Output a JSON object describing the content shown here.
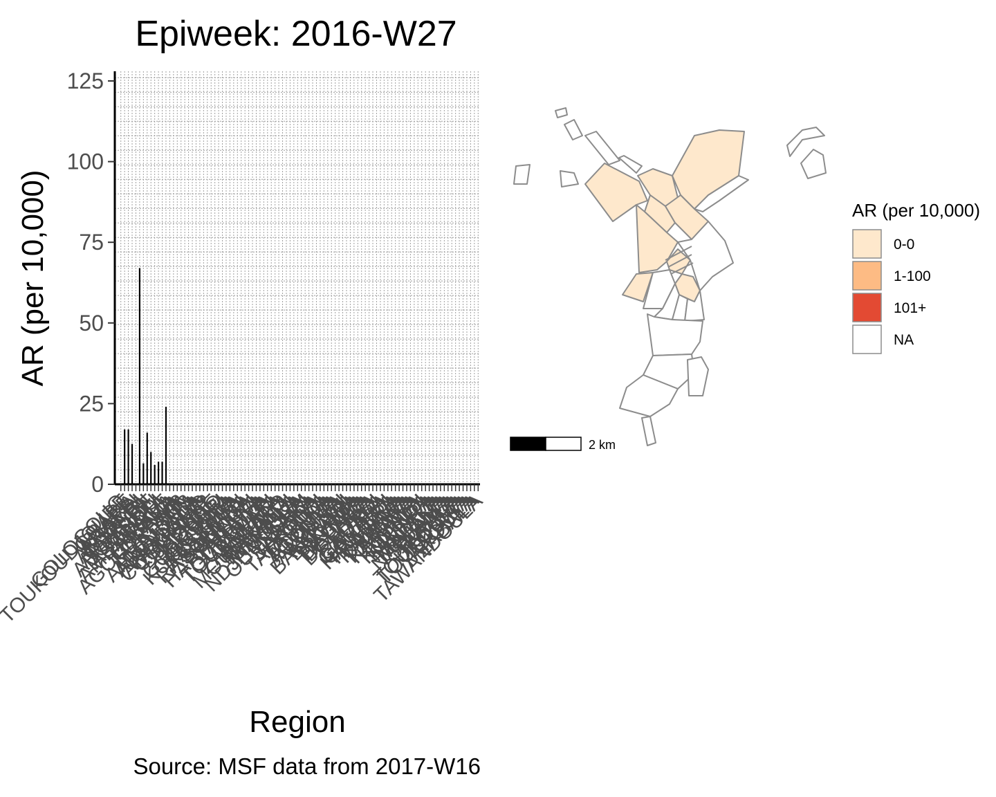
{
  "chart_data": {
    "type": "bar",
    "title": "Epiweek: 2016-W27",
    "xlabel": "Region",
    "ylabel": "AR (per 10,000)",
    "caption": "Source: MSF data from 2017-W16",
    "ylim": [
      0,
      125
    ],
    "yticks": [
      0,
      25,
      50,
      75,
      100,
      125
    ],
    "grid": true,
    "categories": [
      "GOLOGOUO",
      "TOUKOUDJOUBE",
      "GRAPE",
      "AMARA",
      "ARAEBI",
      "ASSAYRI",
      "TAWALA",
      "AMARAKI",
      "ABOUSIRE",
      "TAROU",
      "ASOUDDI",
      "AMBARAKA",
      "AMALE",
      "BABALA",
      "AGOUDJAMA",
      "FORAWA",
      "AIR",
      "AMATANA",
      "AMBATOUB",
      "ABOUDEIA",
      "BADALA",
      "AMDOUGA",
      "CORDIAMO",
      "COUDJAR",
      "DJAMBAL",
      "DJOUBE",
      "GOURO",
      "GOLKOURI",
      "GODINA",
      "KOUKOUNA",
      "KOURBIA",
      "RASSAGA",
      "RASSAMAN",
      "SOUMBA",
      "SOUNGA",
      "HARAGOULI",
      "TAMARA",
      "TARAWA",
      "TOUBOULA",
      "TOUBOUDA",
      "ZAMAKI",
      "ZAKOUMA",
      "ALWALA",
      "MOUSSORO",
      "MAKAMA",
      "MAKADJI",
      "NAWALA",
      "NDJAMOULA",
      "OURA",
      "OUMTOUM",
      "SARA",
      "SARAKA",
      "TAKORA",
      "TALKOUDI",
      "TARAKA",
      "TOUNDA",
      "ADOULA",
      "AGOUMA",
      "ALOUMA",
      "AMASSI",
      "BAKOUDJI",
      "BALAMA",
      "BINAWA",
      "BORDA",
      "DAGALA",
      "DALAMA",
      "DOUNGA",
      "FALAKA",
      "FORDI",
      "GADALA",
      "GAMARA",
      "GARADJI",
      "HADJERA",
      "HAMARA",
      "KABALA",
      "KADAMA",
      "KALWA",
      "KAMARA",
      "KARAWA",
      "KOBALA",
      "KOUDJI",
      "KOUNDA",
      "LAMARA",
      "MADALA",
      "MALAKA",
      "MARDJA",
      "NADJAMA",
      "SALAMA",
      "TAKALA",
      "TARALA",
      "TOUKOURA",
      "TOULOUMA",
      "TOURBA",
      "YAKOULA",
      "ZABALA",
      "TAWANDOULA"
    ],
    "values": [
      0,
      17,
      17,
      12.5,
      0,
      67,
      6.5,
      16,
      10,
      6,
      7,
      7,
      24,
      0,
      0,
      0,
      0,
      0,
      0,
      0,
      0,
      0,
      0,
      0,
      0,
      0,
      0,
      0,
      0,
      0,
      0,
      0,
      0,
      0,
      0,
      0,
      0,
      0,
      0,
      0,
      0,
      0,
      0,
      0,
      0,
      0,
      0,
      0,
      0,
      0,
      0,
      0,
      0,
      0,
      0,
      0,
      0,
      0,
      0,
      0,
      0,
      0,
      0,
      0,
      0,
      0,
      0,
      0,
      0,
      0,
      0,
      0,
      0,
      0,
      0,
      0,
      0,
      0,
      0,
      0,
      0,
      0,
      0,
      0,
      0,
      0,
      0,
      0,
      0,
      0,
      0,
      0,
      0,
      0,
      0,
      0
    ]
  },
  "map": {
    "legend": {
      "title": "AR (per 10,000)",
      "items": [
        {
          "label": "0-0",
          "color": "#FEE8CC"
        },
        {
          "label": "1-100",
          "color": "#FDBB84"
        },
        {
          "label": "101+",
          "color": "#E34A33"
        },
        {
          "label": "NA",
          "color": "#FFFFFF"
        }
      ]
    },
    "scale_bar_label": "2 km"
  }
}
